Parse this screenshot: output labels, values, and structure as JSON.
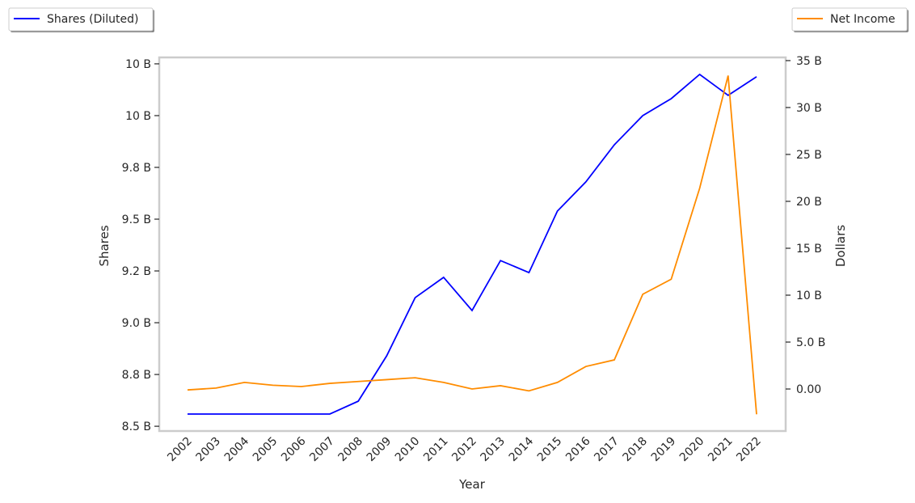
{
  "chart_data": {
    "type": "line",
    "title": "",
    "xlabel": "Year",
    "ylabel_left": "Shares",
    "ylabel_right": "Dollars",
    "categories": [
      "2002",
      "2003",
      "2004",
      "2005",
      "2006",
      "2007",
      "2008",
      "2009",
      "2010",
      "2011",
      "2012",
      "2013",
      "2014",
      "2015",
      "2016",
      "2017",
      "2018",
      "2019",
      "2020",
      "2021",
      "2022"
    ],
    "left_axis": {
      "ylim": [
        8.477,
        10.281
      ],
      "ticks": [
        8.5,
        8.75,
        9.0,
        9.25,
        9.5,
        9.75,
        10.0,
        10.25
      ],
      "tick_labels": [
        "8.5 B",
        "8.8 B",
        "9.0 B",
        "9.2 B",
        "9.5 B",
        "9.8 B",
        "10 B",
        "10 B"
      ]
    },
    "right_axis": {
      "ylim": [
        -4.48,
        35.34
      ],
      "ticks": [
        0,
        5,
        10,
        15,
        20,
        25,
        30,
        35
      ],
      "tick_labels": [
        "0.00",
        "5.0 B",
        "10 B",
        "15 B",
        "20 B",
        "25 B",
        "30 B",
        "35 B"
      ]
    },
    "series": [
      {
        "name": "Shares (Diluted)",
        "axis": "left",
        "color": "#0000ff",
        "values": [
          8.559,
          8.559,
          8.559,
          8.559,
          8.559,
          8.559,
          8.621,
          8.84,
          9.121,
          9.219,
          9.059,
          9.3,
          9.242,
          9.539,
          9.68,
          9.859,
          10.0,
          10.082,
          10.199,
          10.098,
          10.188
        ]
      },
      {
        "name": "Net Income",
        "axis": "right",
        "color": "#ff8c00",
        "values": [
          -0.1,
          0.1,
          0.7,
          0.4,
          0.26,
          0.6,
          0.8,
          1.0,
          1.2,
          0.7,
          0.0,
          0.35,
          -0.2,
          0.7,
          2.4,
          3.1,
          10.1,
          11.7,
          21.4,
          33.4,
          -2.7
        ]
      }
    ],
    "legend": {
      "left": "top-left",
      "right": "top-right"
    },
    "grid": false
  }
}
